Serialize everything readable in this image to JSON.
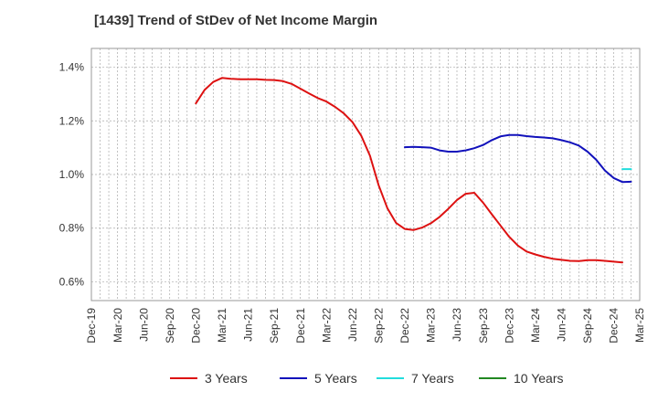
{
  "chart_data": {
    "type": "line",
    "title": "[1439]  Trend of StDev of Net Income Margin",
    "xlabel": "",
    "ylabel": "",
    "x_tick_labels": [
      "Dec-19",
      "Mar-20",
      "Jun-20",
      "Sep-20",
      "Dec-20",
      "Mar-21",
      "Jun-21",
      "Sep-21",
      "Dec-21",
      "Mar-22",
      "Jun-22",
      "Sep-22",
      "Dec-22",
      "Mar-23",
      "Jun-23",
      "Sep-23",
      "Dec-23",
      "Mar-24",
      "Jun-24",
      "Sep-24",
      "Dec-24",
      "Mar-25"
    ],
    "y_ticks": [
      0.6,
      0.8,
      1.0,
      1.2,
      1.4
    ],
    "y_tick_labels": [
      "0.6%",
      "0.8%",
      "1.0%",
      "1.2%",
      "1.4%"
    ],
    "ylim": [
      0.53,
      1.47
    ],
    "grid": true,
    "legend_position": "bottom",
    "series": [
      {
        "name": "3 Years",
        "color": "#dd1111",
        "values": [
          [
            12,
            1.265
          ],
          [
            13,
            1.315
          ],
          [
            14,
            1.345
          ],
          [
            15,
            1.36
          ],
          [
            16,
            1.357
          ],
          [
            17,
            1.355
          ],
          [
            18,
            1.355
          ],
          [
            19,
            1.355
          ],
          [
            20,
            1.353
          ],
          [
            21,
            1.352
          ],
          [
            22,
            1.348
          ],
          [
            23,
            1.338
          ],
          [
            24,
            1.32
          ],
          [
            25,
            1.302
          ],
          [
            26,
            1.285
          ],
          [
            27,
            1.272
          ],
          [
            28,
            1.252
          ],
          [
            29,
            1.228
          ],
          [
            30,
            1.195
          ],
          [
            31,
            1.145
          ],
          [
            32,
            1.07
          ],
          [
            33,
            0.96
          ],
          [
            34,
            0.875
          ],
          [
            35,
            0.82
          ],
          [
            36,
            0.797
          ],
          [
            37,
            0.793
          ],
          [
            38,
            0.802
          ],
          [
            39,
            0.818
          ],
          [
            40,
            0.842
          ],
          [
            41,
            0.872
          ],
          [
            42,
            0.905
          ],
          [
            43,
            0.928
          ],
          [
            44,
            0.932
          ],
          [
            45,
            0.895
          ],
          [
            46,
            0.852
          ],
          [
            47,
            0.81
          ],
          [
            48,
            0.768
          ],
          [
            49,
            0.735
          ],
          [
            50,
            0.713
          ],
          [
            51,
            0.702
          ],
          [
            52,
            0.693
          ],
          [
            53,
            0.686
          ],
          [
            54,
            0.682
          ],
          [
            55,
            0.678
          ],
          [
            56,
            0.677
          ],
          [
            57,
            0.681
          ],
          [
            58,
            0.681
          ],
          [
            59,
            0.678
          ],
          [
            60,
            0.675
          ],
          [
            61,
            0.672
          ]
        ]
      },
      {
        "name": "5 Years",
        "color": "#1111bb",
        "values": [
          [
            36,
            1.102
          ],
          [
            37,
            1.103
          ],
          [
            38,
            1.102
          ],
          [
            39,
            1.1
          ],
          [
            40,
            1.09
          ],
          [
            41,
            1.085
          ],
          [
            42,
            1.085
          ],
          [
            43,
            1.09
          ],
          [
            44,
            1.098
          ],
          [
            45,
            1.11
          ],
          [
            46,
            1.128
          ],
          [
            47,
            1.142
          ],
          [
            48,
            1.147
          ],
          [
            49,
            1.147
          ],
          [
            50,
            1.143
          ],
          [
            51,
            1.14
          ],
          [
            52,
            1.138
          ],
          [
            53,
            1.135
          ],
          [
            54,
            1.128
          ],
          [
            55,
            1.12
          ],
          [
            56,
            1.108
          ],
          [
            57,
            1.085
          ],
          [
            58,
            1.055
          ],
          [
            59,
            1.015
          ],
          [
            60,
            0.987
          ],
          [
            61,
            0.972
          ],
          [
            62,
            0.973
          ]
        ]
      },
      {
        "name": "7 Years",
        "color": "#22dddd",
        "values": [
          [
            61,
            1.02
          ],
          [
            62,
            1.02
          ]
        ]
      },
      {
        "name": "10 Years",
        "color": "#228822",
        "values": []
      }
    ]
  }
}
